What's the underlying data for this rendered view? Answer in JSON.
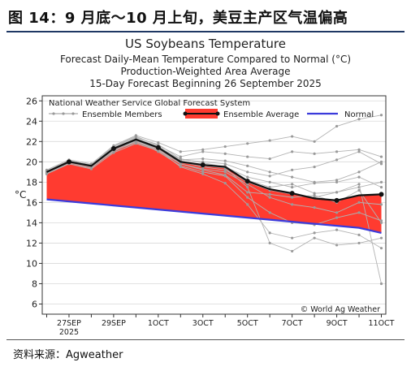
{
  "figure_title": "图 14：9 月底～10 月上旬，美豆主产区气温偏高",
  "source": "资料来源：Agweather",
  "chart_data": {
    "type": "line",
    "title": "US Soybeans Temperature",
    "subtitle_lines": [
      "Forecast Daily-Mean Temperature Compared to Normal (°C)",
      "Production-Weighted Area Average",
      "15-Day Forecast Beginning 26 September 2025"
    ],
    "inner_title": "National Weather Service Global Forecast System",
    "ylabel": "°C",
    "ylim": [
      5,
      26.5
    ],
    "yticks": [
      6,
      8,
      10,
      12,
      14,
      16,
      18,
      20,
      22,
      24,
      26
    ],
    "x": [
      0,
      1,
      2,
      3,
      4,
      5,
      6,
      7,
      8,
      9,
      10,
      11,
      12,
      13,
      14,
      15
    ],
    "xlim": [
      -0.2,
      15.2
    ],
    "xticks": [
      {
        "x": 1,
        "label": "27SEP",
        "sub": "2025"
      },
      {
        "x": 3,
        "label": "29SEP"
      },
      {
        "x": 5,
        "label": "1OCT"
      },
      {
        "x": 7,
        "label": "3OCT"
      },
      {
        "x": 9,
        "label": "5OCT"
      },
      {
        "x": 11,
        "label": "7OCT"
      },
      {
        "x": 13,
        "label": "9OCT"
      },
      {
        "x": 15,
        "label": "11OCT"
      }
    ],
    "legend": [
      "Ensemble Members",
      "Ensemble Average",
      "Normal"
    ],
    "series": [
      {
        "name": "Ensemble Average",
        "values": [
          19.0,
          20.0,
          19.6,
          21.3,
          22.2,
          21.4,
          20.0,
          19.7,
          19.5,
          18.1,
          17.3,
          16.9,
          16.4,
          16.2,
          16.7,
          16.8
        ]
      },
      {
        "name": "Normal",
        "values": [
          16.3,
          16.1,
          15.9,
          15.7,
          15.5,
          15.3,
          15.1,
          14.9,
          14.7,
          14.5,
          14.3,
          14.1,
          13.9,
          13.7,
          13.5,
          13.0
        ]
      }
    ],
    "members": [
      [
        19.2,
        20.2,
        19.8,
        21.6,
        22.6,
        21.9,
        21.0,
        21.2,
        21.5,
        21.8,
        22.1,
        22.5,
        22.0,
        23.5,
        24.2,
        24.6
      ],
      [
        19.1,
        20.1,
        19.7,
        21.5,
        22.5,
        21.6,
        20.5,
        21.0,
        20.8,
        20.5,
        20.3,
        21.0,
        20.8,
        21.0,
        21.2,
        20.5
      ],
      [
        19.0,
        20.0,
        19.5,
        21.2,
        22.3,
        21.5,
        20.2,
        20.3,
        20.1,
        19.6,
        19.0,
        18.5,
        18.0,
        18.2,
        19.0,
        20.0
      ],
      [
        19.0,
        19.9,
        19.6,
        21.3,
        22.0,
        21.3,
        20.0,
        19.5,
        19.2,
        18.0,
        17.2,
        16.8,
        16.5,
        17.0,
        17.5,
        18.0
      ],
      [
        18.9,
        19.9,
        19.5,
        21.0,
        22.1,
        21.0,
        19.6,
        19.0,
        18.6,
        16.5,
        15.0,
        14.0,
        13.8,
        14.5,
        15.0,
        14.2
      ],
      [
        18.9,
        19.8,
        19.4,
        21.1,
        21.9,
        21.2,
        19.5,
        18.8,
        17.9,
        15.8,
        13.0,
        12.5,
        13.0,
        13.3,
        12.8,
        11.5
      ],
      [
        19.0,
        19.9,
        19.6,
        21.4,
        22.2,
        21.4,
        20.1,
        19.6,
        19.4,
        17.5,
        12.0,
        11.2,
        12.5,
        11.8,
        12.0,
        12.5
      ],
      [
        18.8,
        19.8,
        19.3,
        20.9,
        21.8,
        21.1,
        19.8,
        19.2,
        18.7,
        17.0,
        16.8,
        16.5,
        16.7,
        16.0,
        17.2,
        14.0
      ],
      [
        19.1,
        20.0,
        19.7,
        21.5,
        22.4,
        21.7,
        20.3,
        19.9,
        19.5,
        18.5,
        18.0,
        17.5,
        17.9,
        18.0,
        18.5,
        17.5
      ],
      [
        19.0,
        20.0,
        19.6,
        21.2,
        22.1,
        21.3,
        19.9,
        19.7,
        19.6,
        18.2,
        17.5,
        17.8,
        16.9,
        17.0,
        17.8,
        8.0
      ],
      [
        18.9,
        19.9,
        19.5,
        21.1,
        22.0,
        21.2,
        19.8,
        19.3,
        19.0,
        17.8,
        16.5,
        15.8,
        15.5,
        15.0,
        16.0,
        15.8
      ],
      [
        19.1,
        20.1,
        19.7,
        21.4,
        22.3,
        21.5,
        20.2,
        20.0,
        19.8,
        19.0,
        18.6,
        19.2,
        19.5,
        20.2,
        21.0,
        19.8
      ]
    ]
  }
}
